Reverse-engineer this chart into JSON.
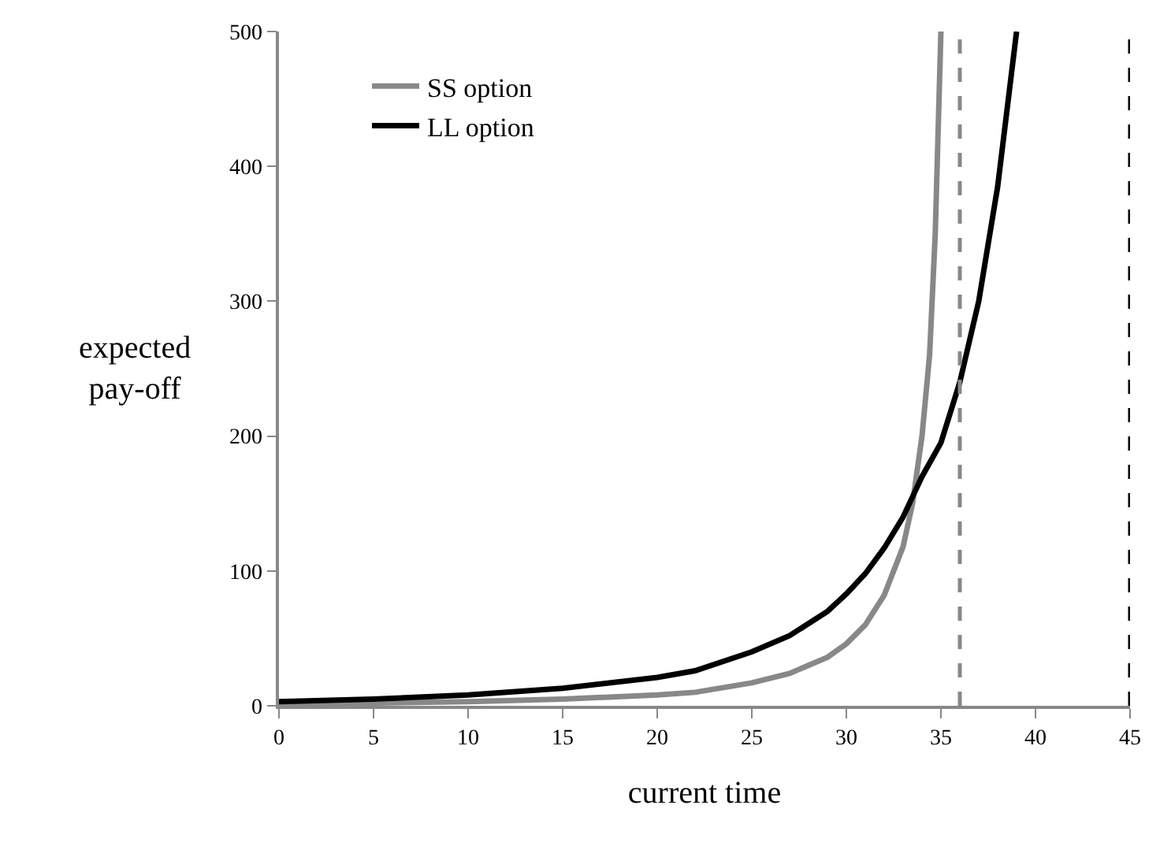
{
  "chart_data": {
    "type": "line",
    "xlabel": "current time",
    "ylabel": "expected\npay-off",
    "xlim": [
      0,
      45
    ],
    "xticks": [
      0,
      5,
      10,
      15,
      20,
      25,
      30,
      35,
      40,
      45
    ],
    "ylim": [
      0,
      500
    ],
    "yticks": [
      0,
      100,
      200,
      300,
      400,
      500
    ],
    "legend": "top left",
    "marker": "none",
    "line_style": "solid",
    "series": [
      {
        "name": "SS option",
        "color": "#888888",
        "x": [
          0,
          5,
          10,
          15,
          20,
          22,
          25,
          27,
          29,
          30,
          31,
          32,
          33,
          33.5,
          34,
          34.4,
          34.7,
          35
        ],
        "values": [
          1,
          2,
          3,
          5,
          8,
          10,
          17,
          24,
          36,
          46,
          60,
          82,
          118,
          150,
          200,
          260,
          350,
          500
        ]
      },
      {
        "name": "LL option",
        "color": "#000000",
        "x": [
          0,
          5,
          10,
          15,
          20,
          22,
          25,
          27,
          29,
          30,
          31,
          32,
          33,
          33.5,
          34,
          35,
          36,
          37,
          38,
          39
        ],
        "values": [
          3,
          5,
          8,
          13,
          21,
          26,
          40,
          52,
          70,
          83,
          98,
          117,
          140,
          155,
          170,
          195,
          240,
          300,
          385,
          500
        ]
      }
    ],
    "ref_lines": [
      {
        "axis": "x",
        "value": 36,
        "color": "#888888",
        "line_style": "dashed"
      },
      {
        "axis": "x",
        "value": 45,
        "color": "#000000",
        "line_style": "dashed"
      }
    ]
  }
}
